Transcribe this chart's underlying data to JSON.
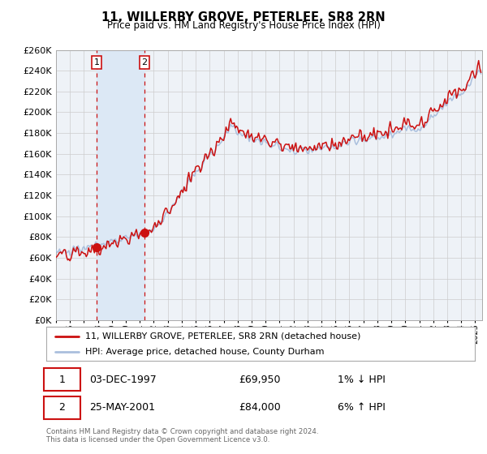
{
  "title": "11, WILLERBY GROVE, PETERLEE, SR8 2RN",
  "subtitle": "Price paid vs. HM Land Registry's House Price Index (HPI)",
  "sale1_year": 1997,
  "sale1_month": 12,
  "sale1_price": 69950,
  "sale1_label": "03-DEC-1997",
  "sale1_pct": "1% ↓ HPI",
  "sale2_year": 2001,
  "sale2_month": 5,
  "sale2_price": 84000,
  "sale2_label": "25-MAY-2001",
  "sale2_pct": "6% ↑ HPI",
  "hpi_line_color": "#aabfdd",
  "price_line_color": "#cc1111",
  "dot_color": "#cc1111",
  "shading_color": "#dce8f5",
  "grid_color": "#cccccc",
  "bg_color": "#eef2f7",
  "legend_label1": "11, WILLERBY GROVE, PETERLEE, SR8 2RN (detached house)",
  "legend_label2": "HPI: Average price, detached house, County Durham",
  "footer": "Contains HM Land Registry data © Crown copyright and database right 2024.\nThis data is licensed under the Open Government Licence v3.0.",
  "ylim": [
    0,
    260000
  ],
  "yticks": [
    0,
    20000,
    40000,
    60000,
    80000,
    100000,
    120000,
    140000,
    160000,
    180000,
    200000,
    220000,
    240000,
    260000
  ],
  "start_year": 1995,
  "end_year": 2025
}
